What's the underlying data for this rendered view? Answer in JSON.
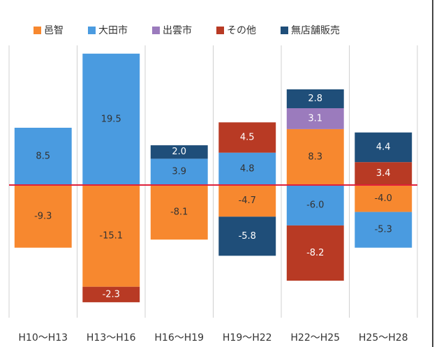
{
  "chart_data": {
    "type": "stacked_bar",
    "categories": [
      "H10～H13",
      "H13～H16",
      "H16～H19",
      "H19～H22",
      "H22～H25",
      "H25～H28"
    ],
    "series": [
      {
        "name": "邑智",
        "color": "#f7882f",
        "values": [
          -9.3,
          -15.1,
          -8.1,
          -4.7,
          8.3,
          -4.0
        ],
        "value_labels": [
          "-9.3",
          "-15.1",
          "-8.1",
          "-4.7",
          "8.3",
          "-4.0"
        ]
      },
      {
        "name": "大田市",
        "color": "#4a9be0",
        "values": [
          8.5,
          19.5,
          3.9,
          4.8,
          -6.0,
          -5.3
        ],
        "value_labels": [
          "8.5",
          "19.5",
          "3.9",
          "4.8",
          "-6.0",
          "-5.3"
        ]
      },
      {
        "name": "出雲市",
        "color": "#9b7bbd",
        "values": [
          null,
          null,
          null,
          null,
          3.1,
          null
        ],
        "value_labels": [
          null,
          null,
          null,
          null,
          "3.1",
          null
        ]
      },
      {
        "name": "その他",
        "color": "#b83a24",
        "values": [
          null,
          -2.3,
          null,
          4.5,
          -8.2,
          3.4
        ],
        "value_labels": [
          null,
          "-2.3",
          null,
          "4.5",
          "-8.2",
          "3.4"
        ]
      },
      {
        "name": "無店舗販売",
        "color": "#1f4e79",
        "values": [
          null,
          null,
          2.0,
          -5.8,
          2.8,
          4.4
        ],
        "value_labels": [
          null,
          null,
          "2.0",
          "-5.8",
          "2.8",
          "4.4"
        ]
      }
    ],
    "ylim": [
      -20,
      20
    ]
  }
}
